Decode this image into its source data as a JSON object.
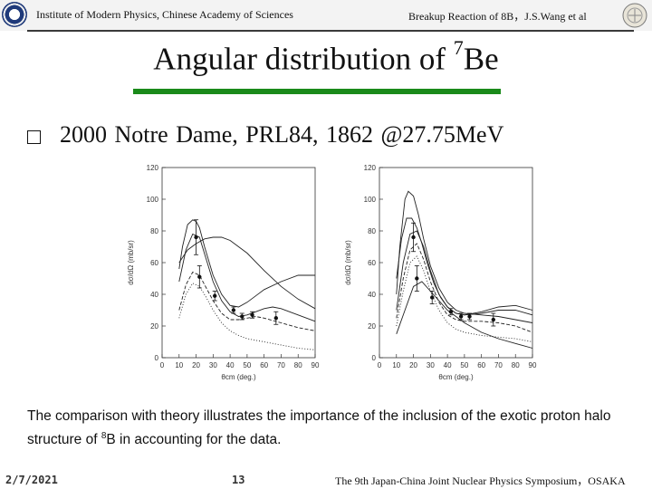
{
  "header": {
    "left_text": "Institute of Modern Physics, Chinese Academy of Sciences",
    "right_text": "Breakup Reaction of 8B，J.S.Wang et al"
  },
  "slide": {
    "title_main": "Angular distribution of ",
    "title_sup": "7",
    "title_end": "Be",
    "reference": "2000  Notre Dame,  PRL84, 1862   @27.75MeV",
    "caption_pre": "The comparison with theory illustrates the importance of the inclusion of the exotic proton halo structure of ",
    "caption_sup": "8",
    "caption_post": "B in accounting for the data."
  },
  "footer": {
    "date": "2/7/2021",
    "page": "13",
    "conference": "The 9th Japan-China Joint Nuclear Physics Symposium，OSAKA"
  },
  "colors": {
    "accent_bar": "#1a8a1a",
    "header_line": "#3a3a3a"
  },
  "chart_data": [
    {
      "type": "line",
      "xlabel": "θcm (deg.)",
      "ylabel": "dσ/dΩ (mb/sr)",
      "xlim": [
        0,
        90
      ],
      "ylim": [
        0,
        120
      ],
      "xticks": [
        0,
        10,
        20,
        30,
        40,
        50,
        60,
        70,
        80,
        90
      ],
      "yticks": [
        0,
        20,
        40,
        60,
        80,
        100,
        120
      ],
      "data_points": [
        {
          "x": 20,
          "y": 76,
          "err": 11
        },
        {
          "x": 22,
          "y": 51,
          "err": 7
        },
        {
          "x": 31,
          "y": 39,
          "err": 3
        },
        {
          "x": 42,
          "y": 30,
          "err": 2
        },
        {
          "x": 47,
          "y": 26,
          "err": 2
        },
        {
          "x": 53,
          "y": 27,
          "err": 2
        },
        {
          "x": 67,
          "y": 25,
          "err": 4
        }
      ],
      "series": [
        {
          "style": "solid",
          "x": [
            10,
            12,
            15,
            18,
            20,
            22,
            25,
            30,
            35,
            40,
            45,
            50,
            55,
            60,
            70,
            80,
            90
          ],
          "y": [
            56,
            70,
            84,
            87,
            86,
            82,
            70,
            52,
            40,
            33,
            32,
            35,
            39,
            43,
            48,
            52,
            52
          ]
        },
        {
          "style": "solid",
          "x": [
            10,
            15,
            20,
            25,
            30,
            35,
            40,
            50,
            60,
            70,
            80,
            90
          ],
          "y": [
            60,
            68,
            72,
            75,
            76,
            76,
            74,
            66,
            55,
            45,
            37,
            31
          ]
        },
        {
          "style": "solid",
          "x": [
            10,
            14,
            18,
            22,
            26,
            30,
            35,
            40,
            45,
            50,
            55,
            60,
            65,
            70,
            80,
            90
          ],
          "y": [
            48,
            68,
            78,
            76,
            62,
            48,
            36,
            29,
            26,
            27,
            29,
            31,
            32,
            31,
            27,
            23
          ]
        },
        {
          "style": "dashed",
          "x": [
            10,
            14,
            18,
            22,
            26,
            30,
            35,
            40,
            45,
            50,
            55,
            60,
            70,
            80,
            90
          ],
          "y": [
            30,
            46,
            54,
            52,
            44,
            36,
            28,
            24,
            24,
            25,
            26,
            25,
            22,
            19,
            17
          ]
        },
        {
          "style": "dotted",
          "x": [
            10,
            14,
            18,
            22,
            26,
            30,
            35,
            40,
            45,
            50,
            60,
            70,
            80,
            90
          ],
          "y": [
            25,
            40,
            47,
            45,
            38,
            30,
            22,
            17,
            14,
            12,
            10,
            8,
            6,
            5
          ]
        }
      ]
    },
    {
      "type": "line",
      "xlabel": "θcm (deg.)",
      "ylabel": "dσ/dΩ (mb/sr)",
      "xlim": [
        0,
        90
      ],
      "ylim": [
        0,
        120
      ],
      "xticks": [
        0,
        10,
        20,
        30,
        40,
        50,
        60,
        70,
        80,
        90
      ],
      "yticks": [
        0,
        20,
        40,
        60,
        80,
        100,
        120
      ],
      "data_points": [
        {
          "x": 20,
          "y": 76,
          "err": 9
        },
        {
          "x": 22,
          "y": 50,
          "err": 8
        },
        {
          "x": 31,
          "y": 38,
          "err": 4
        },
        {
          "x": 42,
          "y": 29,
          "err": 2
        },
        {
          "x": 48,
          "y": 26,
          "err": 2
        },
        {
          "x": 53,
          "y": 26,
          "err": 2
        },
        {
          "x": 67,
          "y": 24,
          "err": 4
        }
      ],
      "series": [
        {
          "style": "solid",
          "x": [
            10,
            12,
            15,
            17,
            20,
            23,
            26,
            30,
            35,
            40,
            45,
            50,
            60,
            70,
            80,
            90
          ],
          "y": [
            40,
            70,
            100,
            105,
            102,
            90,
            75,
            58,
            44,
            35,
            30,
            28,
            27,
            26,
            24,
            22
          ]
        },
        {
          "style": "solid",
          "x": [
            10,
            13,
            16,
            19,
            22,
            25,
            28,
            32,
            36,
            40,
            45,
            50,
            60,
            70,
            80,
            90
          ],
          "y": [
            50,
            75,
            88,
            88,
            82,
            72,
            60,
            47,
            38,
            32,
            28,
            27,
            29,
            32,
            33,
            30
          ]
        },
        {
          "style": "solid",
          "x": [
            10,
            14,
            18,
            22,
            26,
            30,
            35,
            40,
            45,
            50,
            60,
            70,
            80,
            90
          ],
          "y": [
            30,
            60,
            78,
            80,
            70,
            55,
            40,
            32,
            28,
            27,
            28,
            30,
            30,
            27
          ]
        },
        {
          "style": "dashed",
          "x": [
            10,
            14,
            18,
            22,
            26,
            30,
            35,
            40,
            45,
            50,
            60,
            70,
            80,
            90
          ],
          "y": [
            25,
            50,
            68,
            72,
            62,
            48,
            35,
            27,
            24,
            23,
            23,
            22,
            20,
            16
          ]
        },
        {
          "style": "dotted",
          "x": [
            10,
            14,
            18,
            22,
            26,
            30,
            35,
            40,
            45,
            50,
            60,
            70,
            80,
            90
          ],
          "y": [
            20,
            42,
            60,
            64,
            55,
            42,
            30,
            22,
            18,
            16,
            14,
            13,
            12,
            10
          ]
        },
        {
          "style": "solid",
          "x": [
            10,
            15,
            20,
            25,
            30,
            40,
            50,
            60,
            70,
            80,
            90
          ],
          "y": [
            15,
            30,
            45,
            48,
            42,
            30,
            22,
            16,
            12,
            9,
            6
          ]
        }
      ]
    }
  ]
}
